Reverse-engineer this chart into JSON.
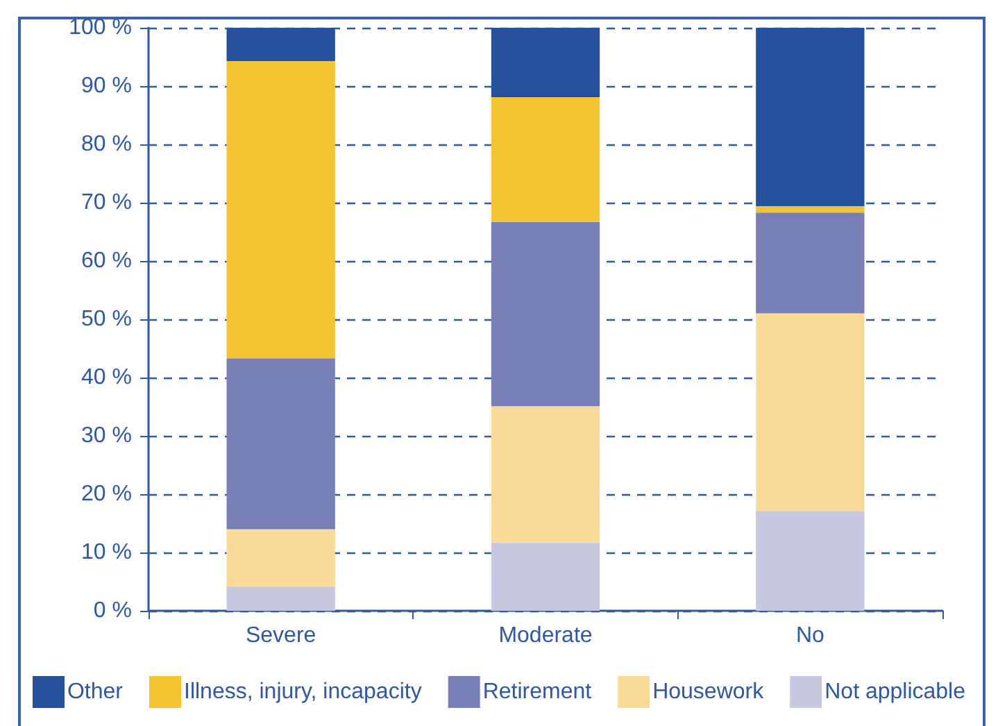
{
  "chart_data": {
    "type": "bar",
    "stacked": true,
    "categories": [
      "Severe",
      "Moderate",
      "No"
    ],
    "series": [
      {
        "name": "Not applicable",
        "color": "#c8c8e0",
        "values": [
          4.2,
          11.7,
          17.1
        ]
      },
      {
        "name": "Housework",
        "color": "#f9db97",
        "values": [
          9.8,
          23.4,
          33.9
        ]
      },
      {
        "name": "Retirement",
        "color": "#7880b7",
        "values": [
          29.3,
          31.6,
          17.3
        ]
      },
      {
        "name": "Illness, injury, incapacity",
        "color": "#f4c433",
        "values": [
          51.0,
          21.4,
          1.1
        ]
      },
      {
        "name": "Other",
        "color": "#25509b",
        "values": [
          5.7,
          11.9,
          30.6
        ]
      }
    ],
    "ylim": [
      0,
      100
    ],
    "yticks": [
      {
        "value": 0,
        "label": "0 %"
      },
      {
        "value": 10,
        "label": "10 %"
      },
      {
        "value": 20,
        "label": "20 %"
      },
      {
        "value": 30,
        "label": "30 %"
      },
      {
        "value": 40,
        "label": "40 %"
      },
      {
        "value": 50,
        "label": "50 %"
      },
      {
        "value": 60,
        "label": "60 %"
      },
      {
        "value": 70,
        "label": "70 %"
      },
      {
        "value": 80,
        "label": "80 %"
      },
      {
        "value": 90,
        "label": "90 %"
      },
      {
        "value": 100,
        "label": "100 %"
      }
    ],
    "grid": "y",
    "legend": "bottom"
  }
}
